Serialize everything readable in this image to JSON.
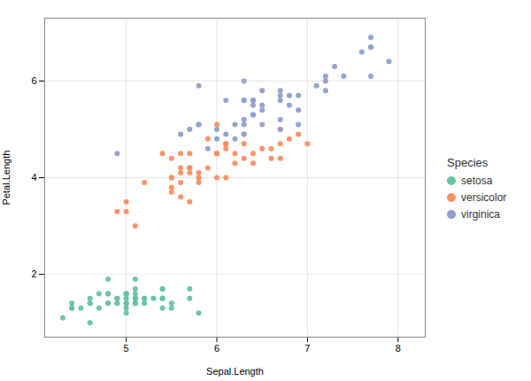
{
  "chart_data": {
    "type": "scatter",
    "xlabel": "Sepal.Length",
    "ylabel": "Petal.Length",
    "legend_title": "Species",
    "legend": "right",
    "grid": true,
    "xlim": [
      4.1,
      8.3
    ],
    "ylim": [
      0.7,
      7.3
    ],
    "xticks": [
      5,
      6,
      7,
      8
    ],
    "yticks": [
      2,
      4,
      6
    ],
    "series": [
      {
        "name": "setosa",
        "color": "#66C2A5",
        "x": [
          5.1,
          4.9,
          4.7,
          4.6,
          5.0,
          5.4,
          4.6,
          5.0,
          4.4,
          4.9,
          5.4,
          4.8,
          4.8,
          4.3,
          5.8,
          5.7,
          5.4,
          5.1,
          5.7,
          5.1,
          5.4,
          5.1,
          4.6,
          5.1,
          4.8,
          5.0,
          5.0,
          5.2,
          5.2,
          4.7,
          4.8,
          5.4,
          5.2,
          5.5,
          4.9,
          5.0,
          5.5,
          4.9,
          4.4,
          5.1,
          5.0,
          4.5,
          4.4,
          5.0,
          5.1,
          4.8,
          5.1,
          4.6,
          5.3,
          5.0
        ],
        "values": [
          1.4,
          1.4,
          1.3,
          1.5,
          1.4,
          1.7,
          1.4,
          1.5,
          1.4,
          1.5,
          1.5,
          1.6,
          1.4,
          1.1,
          1.2,
          1.5,
          1.3,
          1.4,
          1.7,
          1.5,
          1.7,
          1.5,
          1.0,
          1.7,
          1.9,
          1.6,
          1.6,
          1.5,
          1.4,
          1.6,
          1.6,
          1.5,
          1.5,
          1.4,
          1.5,
          1.2,
          1.3,
          1.4,
          1.3,
          1.5,
          1.3,
          1.3,
          1.3,
          1.6,
          1.9,
          1.4,
          1.6,
          1.4,
          1.5,
          1.4
        ]
      },
      {
        "name": "versicolor",
        "color": "#FC8D62",
        "x": [
          7.0,
          6.4,
          6.9,
          5.5,
          6.5,
          5.7,
          6.3,
          4.9,
          6.6,
          5.2,
          5.0,
          5.9,
          6.0,
          6.1,
          5.6,
          6.7,
          5.6,
          5.8,
          6.2,
          5.6,
          5.9,
          6.1,
          6.3,
          6.1,
          6.4,
          6.6,
          6.8,
          6.7,
          6.0,
          5.7,
          5.5,
          5.5,
          5.8,
          6.0,
          5.4,
          6.0,
          6.7,
          6.3,
          5.6,
          5.5,
          5.5,
          6.1,
          5.8,
          5.0,
          5.6,
          5.7,
          5.7,
          6.2,
          5.1,
          5.7
        ],
        "values": [
          4.7,
          4.5,
          4.9,
          4.0,
          4.6,
          4.5,
          4.7,
          3.3,
          4.6,
          3.9,
          3.5,
          4.2,
          4.0,
          4.7,
          3.6,
          4.4,
          4.5,
          4.1,
          4.5,
          3.9,
          4.8,
          4.0,
          4.9,
          4.7,
          4.3,
          4.4,
          4.8,
          5.0,
          4.5,
          3.5,
          3.8,
          3.7,
          3.9,
          5.1,
          4.5,
          4.5,
          4.7,
          4.4,
          4.1,
          4.0,
          4.4,
          4.6,
          4.0,
          3.3,
          4.2,
          4.2,
          4.2,
          4.3,
          3.0,
          4.1
        ]
      },
      {
        "name": "virginica",
        "color": "#8DA0CB",
        "x": [
          6.3,
          5.8,
          7.1,
          6.3,
          6.5,
          7.6,
          4.9,
          7.3,
          6.7,
          7.2,
          6.5,
          6.4,
          6.8,
          5.7,
          5.8,
          6.4,
          6.5,
          7.7,
          7.7,
          6.0,
          6.9,
          5.6,
          7.7,
          6.3,
          6.7,
          7.2,
          6.2,
          6.1,
          6.4,
          7.2,
          7.4,
          7.9,
          6.4,
          6.3,
          6.1,
          7.7,
          6.3,
          6.4,
          6.0,
          6.9,
          6.7,
          6.9,
          5.8,
          6.8,
          6.7,
          6.7,
          6.3,
          6.5,
          6.2,
          5.9
        ],
        "values": [
          6.0,
          5.1,
          5.9,
          5.6,
          5.8,
          6.6,
          4.5,
          6.3,
          5.8,
          6.1,
          5.1,
          5.3,
          5.5,
          5.0,
          5.1,
          5.3,
          5.5,
          6.7,
          6.9,
          5.0,
          5.7,
          4.9,
          6.7,
          4.9,
          5.7,
          6.0,
          4.8,
          4.9,
          5.6,
          5.8,
          6.1,
          6.4,
          5.6,
          5.1,
          5.6,
          6.1,
          5.6,
          5.5,
          4.8,
          5.4,
          5.6,
          5.1,
          5.9,
          5.7,
          5.2,
          5.0,
          5.2,
          5.4,
          5.1,
          4.6
        ]
      }
    ]
  }
}
